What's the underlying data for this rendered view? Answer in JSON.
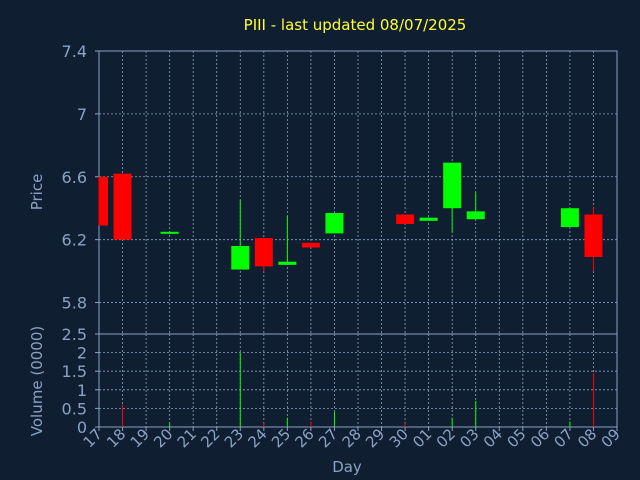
{
  "chart_data": {
    "type": "candlestick",
    "title": "PIII - last updated 08/07/2025",
    "xlabel": "Day",
    "colors": {
      "background": "#0f1e30",
      "up": "#00ff00",
      "down": "#ff0000",
      "axis_text": "#8aa3c4",
      "title": "#ffff33",
      "grid": "#8aa3c4"
    },
    "x_tick_labels": [
      "17",
      "18",
      "19",
      "20",
      "21",
      "22",
      "23",
      "24",
      "25",
      "26",
      "27",
      "28",
      "29",
      "30",
      "01",
      "02",
      "03",
      "04",
      "05",
      "06",
      "07",
      "08",
      "09"
    ],
    "price_panel": {
      "ylabel": "Price",
      "ylim": [
        5.6,
        7.4
      ],
      "y_ticks": [
        7.4,
        7.0,
        6.6,
        6.2,
        5.8
      ],
      "y_tick_labels": [
        "7.4",
        "7",
        "6.6",
        "6.2",
        "5.8"
      ],
      "grid": true
    },
    "volume_panel": {
      "ylabel": "Volume (0000)",
      "ylim": [
        0,
        2.5
      ],
      "y_ticks": [
        2.5,
        2,
        1.5,
        1,
        0.5,
        0
      ],
      "y_tick_labels": [
        "2.5",
        "2",
        "1.5",
        "1",
        "0.5",
        "0"
      ],
      "grid": true
    },
    "candles": [
      {
        "day": "17",
        "open": 6.6,
        "high": 6.6,
        "low": 6.29,
        "close": 6.29
      },
      {
        "day": "18",
        "open": 6.62,
        "high": 6.62,
        "low": 6.2,
        "close": 6.2
      },
      {
        "day": "20",
        "open": 6.24,
        "high": 6.25,
        "low": 6.24,
        "close": 6.25
      },
      {
        "day": "23",
        "open": 6.01,
        "high": 6.45,
        "low": 6.01,
        "close": 6.16
      },
      {
        "day": "24",
        "open": 6.21,
        "high": 6.21,
        "low": 6.0,
        "close": 6.03
      },
      {
        "day": "25",
        "open": 6.04,
        "high": 6.35,
        "low": 6.04,
        "close": 6.06
      },
      {
        "day": "26",
        "open": 6.18,
        "high": 6.18,
        "low": 6.15,
        "close": 6.15
      },
      {
        "day": "27",
        "open": 6.24,
        "high": 6.37,
        "low": 6.24,
        "close": 6.37
      },
      {
        "day": "30",
        "open": 6.36,
        "high": 6.36,
        "low": 6.3,
        "close": 6.3
      },
      {
        "day": "01",
        "open": 6.32,
        "high": 6.34,
        "low": 6.32,
        "close": 6.34
      },
      {
        "day": "02",
        "open": 6.4,
        "high": 6.69,
        "low": 6.25,
        "close": 6.69
      },
      {
        "day": "03",
        "open": 6.33,
        "high": 6.5,
        "low": 6.33,
        "close": 6.38
      },
      {
        "day": "07",
        "open": 6.28,
        "high": 6.4,
        "low": 6.28,
        "close": 6.4
      },
      {
        "day": "08",
        "open": 6.36,
        "high": 6.41,
        "low": 6.0,
        "close": 6.09
      }
    ],
    "volumes": [
      {
        "day": "18",
        "value": 0.6,
        "color": "#ff0000"
      },
      {
        "day": "20",
        "value": 0.1,
        "color": "#00ff00"
      },
      {
        "day": "23",
        "value": 2.0,
        "color": "#00ff00"
      },
      {
        "day": "24",
        "value": 0.1,
        "color": "#ff0000"
      },
      {
        "day": "25",
        "value": 0.25,
        "color": "#00ff00"
      },
      {
        "day": "26",
        "value": 0.15,
        "color": "#ff0000"
      },
      {
        "day": "27",
        "value": 0.4,
        "color": "#00ff00"
      },
      {
        "day": "30",
        "value": 0.1,
        "color": "#ff0000"
      },
      {
        "day": "02",
        "value": 0.25,
        "color": "#00ff00"
      },
      {
        "day": "03",
        "value": 0.7,
        "color": "#00ff00"
      },
      {
        "day": "07",
        "value": 0.15,
        "color": "#00ff00"
      },
      {
        "day": "08",
        "value": 1.45,
        "color": "#ff0000"
      }
    ]
  }
}
